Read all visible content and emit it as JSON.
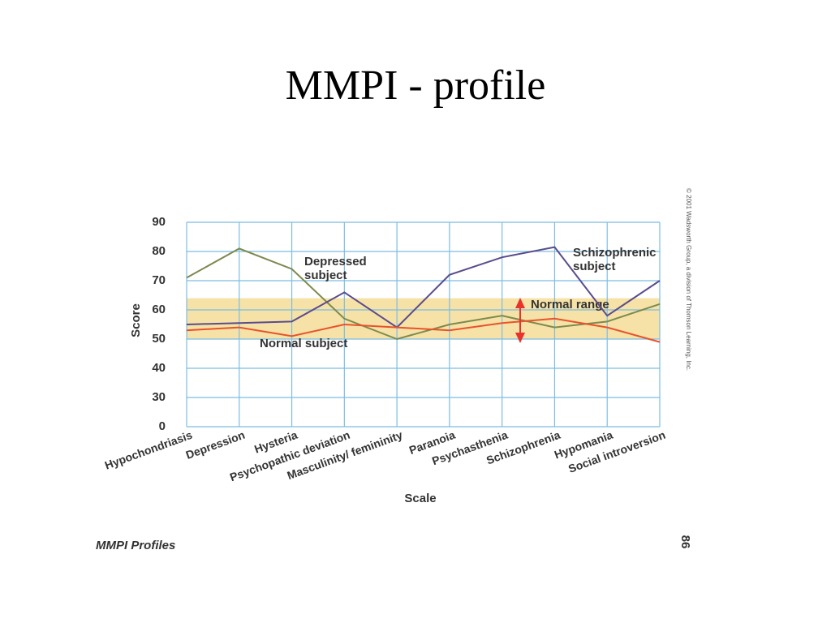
{
  "title": "MMPI - profile",
  "chart_data": {
    "type": "line",
    "ylabel": "Score",
    "xlabel": "Scale",
    "categories": [
      "Hypochondriasis",
      "Depression",
      "Hysteria",
      "Psychopathic deviation",
      "Masculinity/ femininity",
      "Paranoia",
      "Psychasthenia",
      "Schizophrenia",
      "Hypomania",
      "Social introversion"
    ],
    "series": [
      {
        "name": "Depressed subject",
        "color": "#7d8a4e",
        "values": [
          71,
          81,
          74,
          57,
          50,
          55,
          58,
          54,
          56,
          62
        ]
      },
      {
        "name": "Schizophrenic subject",
        "color": "#5b4c8c",
        "values": [
          55,
          55.5,
          56,
          66,
          54,
          72,
          78,
          81.5,
          58,
          70
        ]
      },
      {
        "name": "Normal subject",
        "color": "#e8532c",
        "values": [
          53,
          54,
          51,
          55,
          54,
          53,
          55.5,
          57,
          54,
          49
        ]
      }
    ],
    "normal_range": {
      "label": "Normal range",
      "values": [
        50,
        64
      ],
      "color": "#f6e2a6"
    },
    "ylim": [
      0,
      90
    ],
    "yticks": [
      0,
      30,
      40,
      50,
      60,
      70,
      80,
      90
    ],
    "y_broken": true,
    "grid": true,
    "grid_color": "#7cbde3"
  },
  "figure_caption": "MMPI Profiles",
  "page_number": "86",
  "copyright": "© 2001 Wadsworth Group, a division of Thomson Learning, Inc."
}
